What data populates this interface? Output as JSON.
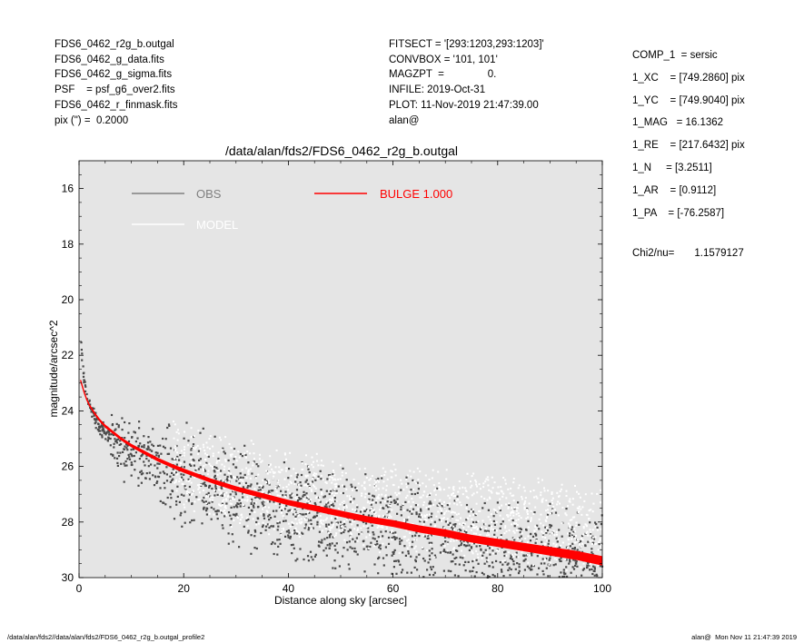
{
  "header_left": [
    "FDS6_0462_r2g_b.outgal",
    "FDS6_0462_g_data.fits",
    "FDS6_0462_g_sigma.fits",
    "PSF    = psf_g6_over2.fits",
    "FDS6_0462_r_finmask.fits",
    "pix (\") =  0.2000"
  ],
  "header_mid": [
    "FITSECT = '[293:1203,293:1203]'",
    "CONVBOX = '101, 101'",
    "MAGZPT  =               0.",
    "INFILE: 2019-Oct-31",
    "PLOT: 11-Nov-2019 21:47:39.00",
    "alan@"
  ],
  "header_right": [
    "COMP_1  = sersic",
    "1_XC    = [749.2860] pix",
    "1_YC    = [749.9040] pix",
    "1_MAG   = 16.1362",
    "1_RE    = [217.6432] pix",
    "1_N     = [3.2511]",
    "1_AR    = [0.9112]",
    "1_PA    = [-76.2587]"
  ],
  "chi2": {
    "label": "Chi2/nu=",
    "value": "1.1579127"
  },
  "footer": {
    "left": "/data/alan/fds2//data/alan/fds2/FDS6_0462_r2g_b.outgal_profile2",
    "right": "alan@  Mon Nov 11 21:47:39 2019"
  },
  "colors": {
    "plot_bg": "#e5e5e5",
    "obs": "#4a4a4a",
    "obs_legend": "#808080",
    "model": "#ffffff",
    "bulge": "#ff0000"
  },
  "chart_data": {
    "type": "scatter",
    "title": "/data/alan/fds2/FDS6_0462_r2g_b.outgal",
    "xlabel": "Distance along sky [arcsec]",
    "ylabel": "magnitude/arcsec^2",
    "xlim": [
      0,
      100
    ],
    "ylim": [
      30,
      15
    ],
    "y_inverted": true,
    "x_ticks": [
      "0",
      "20",
      "40",
      "60",
      "80",
      "100"
    ],
    "y_ticks": [
      "16",
      "18",
      "20",
      "22",
      "24",
      "26",
      "28",
      "30"
    ],
    "grid": false,
    "legend_placement": "top",
    "series": [
      {
        "name": "OBS",
        "kind": "points",
        "x": [
          0.5,
          0.8,
          1,
          1.5,
          2,
          3,
          4,
          5,
          6,
          7,
          8,
          10,
          12,
          15,
          18,
          20,
          25,
          30,
          35,
          40,
          45,
          50,
          55,
          60,
          65,
          70,
          75,
          80,
          85,
          90,
          95,
          100
        ],
        "y": [
          21.8,
          22.4,
          22.9,
          23.4,
          23.8,
          24.3,
          24.6,
          24.8,
          25.0,
          25.1,
          25.2,
          25.4,
          25.6,
          25.9,
          26.1,
          26.3,
          26.7,
          27.0,
          27.3,
          27.6,
          27.8,
          28.0,
          28.2,
          28.4,
          28.5,
          28.7,
          28.9,
          29.0,
          29.2,
          29.3,
          29.5,
          29.6
        ]
      },
      {
        "name": "MODEL",
        "kind": "points",
        "x": [
          20,
          25,
          30,
          35,
          40,
          45,
          50,
          55,
          60,
          65,
          70,
          75,
          80,
          85,
          90,
          95,
          100
        ],
        "y": [
          26.0,
          26.4,
          26.6,
          26.8,
          27.0,
          27.1,
          27.3,
          27.4,
          27.5,
          27.6,
          27.7,
          27.8,
          27.9,
          28.0,
          28.1,
          28.2,
          28.3
        ]
      },
      {
        "name": "BULGE  1.000",
        "kind": "line",
        "x": [
          0.3,
          0.6,
          1,
          1.5,
          2,
          3,
          4,
          5,
          6,
          8,
          10,
          12,
          15,
          18,
          20,
          25,
          30,
          35,
          40,
          45,
          50,
          55,
          60,
          65,
          70,
          75,
          80,
          85,
          90,
          95,
          100
        ],
        "y": [
          22.9,
          23.1,
          23.35,
          23.6,
          23.8,
          24.1,
          24.35,
          24.55,
          24.7,
          25.0,
          25.25,
          25.45,
          25.75,
          26.0,
          26.15,
          26.5,
          26.8,
          27.05,
          27.3,
          27.5,
          27.7,
          27.9,
          28.05,
          28.25,
          28.4,
          28.6,
          28.75,
          28.9,
          29.05,
          29.2,
          29.4
        ]
      }
    ]
  }
}
